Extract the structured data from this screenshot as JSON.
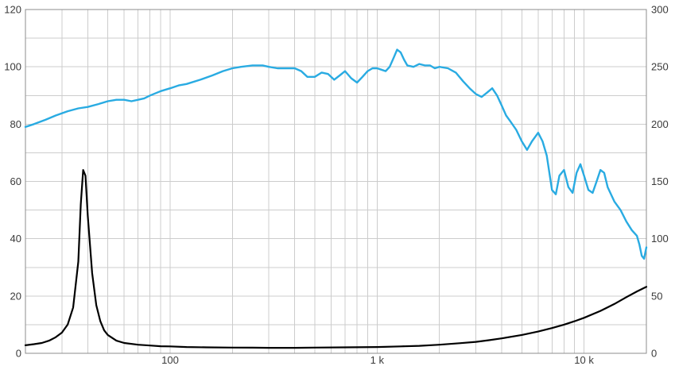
{
  "chart_data": {
    "type": "line",
    "title": "",
    "xlabel": "",
    "ylabel_left": "",
    "ylabel_right": "",
    "grid": true,
    "legend_position": "none",
    "background": "#ffffff",
    "grid_color": "#cccccc",
    "border_color": "#8c8c8c",
    "x_axis": {
      "scale": "log",
      "min": 20,
      "max": 20000,
      "ticks": [
        {
          "value": 100,
          "label": "100"
        },
        {
          "value": 1000,
          "label": "1 k"
        },
        {
          "value": 10000,
          "label": "10 k"
        }
      ]
    },
    "y_left": {
      "min": 0,
      "max": 120,
      "grid_step": 10,
      "ticks": [
        120,
        100,
        80,
        60,
        40,
        20,
        0
      ]
    },
    "y_right": {
      "min": 0,
      "max": 300,
      "ticks": [
        300,
        250,
        200,
        150,
        100,
        50,
        0
      ]
    },
    "series": [
      {
        "name": "blue-curve-left-axis",
        "axis": "left",
        "color": "#29abe2",
        "width": 2.4,
        "x": [
          20,
          22,
          25,
          28,
          32,
          36,
          40,
          45,
          50,
          55,
          60,
          65,
          70,
          75,
          80,
          90,
          100,
          110,
          120,
          140,
          160,
          180,
          200,
          220,
          250,
          280,
          300,
          330,
          360,
          400,
          430,
          460,
          500,
          540,
          580,
          620,
          660,
          700,
          750,
          800,
          850,
          900,
          950,
          1000,
          1050,
          1100,
          1150,
          1200,
          1250,
          1300,
          1350,
          1400,
          1500,
          1600,
          1700,
          1800,
          1900,
          2000,
          2200,
          2400,
          2600,
          2800,
          3000,
          3200,
          3400,
          3600,
          3800,
          4000,
          4200,
          4400,
          4700,
          5000,
          5300,
          5600,
          6000,
          6300,
          6600,
          7000,
          7300,
          7600,
          8000,
          8400,
          8800,
          9200,
          9600,
          10000,
          10500,
          11000,
          11500,
          12000,
          12500,
          13000,
          14000,
          15000,
          16000,
          17000,
          18000,
          18500,
          19000,
          19500,
          20000
        ],
        "y": [
          79,
          80,
          81.5,
          83,
          84.5,
          85.5,
          86,
          87,
          88,
          88.5,
          88.5,
          88,
          88.5,
          89,
          90,
          91.5,
          92.5,
          93.5,
          94,
          95.5,
          97,
          98.5,
          99.5,
          100,
          100.5,
          100.5,
          100,
          99.5,
          99.5,
          99.5,
          98.5,
          96.5,
          96.5,
          98,
          97.5,
          95.5,
          97,
          98.5,
          96,
          94.5,
          96.5,
          98.5,
          99.5,
          99.5,
          99,
          98.5,
          100,
          103,
          106,
          105,
          102.5,
          100.5,
          100,
          101,
          100.5,
          100.5,
          99.5,
          100,
          99.5,
          98,
          95,
          92.5,
          90.5,
          89.5,
          91,
          92.5,
          90,
          86.5,
          83,
          81,
          78,
          74,
          71,
          74,
          77,
          74,
          69,
          57,
          55.5,
          62,
          64,
          58,
          56,
          63,
          66,
          62,
          57,
          56,
          60,
          64,
          63,
          58,
          53,
          50,
          46,
          43,
          41,
          38,
          34,
          33,
          37
        ]
      },
      {
        "name": "black-curve-right-axis",
        "axis": "right",
        "color": "#000000",
        "width": 2.2,
        "x": [
          20,
          22,
          24,
          26,
          28,
          30,
          32,
          34,
          36,
          37,
          38,
          39,
          40,
          42,
          44,
          46,
          48,
          50,
          55,
          60,
          70,
          80,
          90,
          100,
          120,
          150,
          200,
          250,
          300,
          400,
          500,
          700,
          1000,
          1300,
          1600,
          2000,
          2500,
          3000,
          3500,
          4000,
          5000,
          6000,
          7000,
          8000,
          9000,
          10000,
          12000,
          14000,
          16000,
          18000,
          20000
        ],
        "y": [
          7,
          8,
          9,
          11,
          14,
          18,
          25,
          40,
          80,
          130,
          160,
          155,
          120,
          70,
          42,
          28,
          20,
          16,
          11,
          9,
          7.5,
          6.8,
          6.2,
          6,
          5.5,
          5.2,
          5,
          4.9,
          4.8,
          4.8,
          5,
          5.2,
          5.5,
          6,
          6.5,
          7.5,
          8.8,
          10,
          11.5,
          13,
          16,
          19,
          22,
          25,
          28,
          31,
          37,
          43,
          49,
          54,
          58
        ]
      }
    ]
  }
}
